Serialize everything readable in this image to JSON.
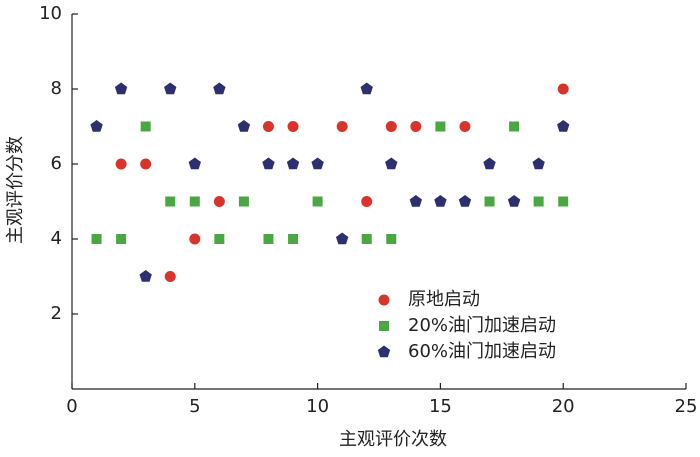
{
  "chart_data": {
    "type": "scatter",
    "xlabel": "主观评价次数",
    "ylabel": "主观评价分数",
    "xlim": [
      0,
      25
    ],
    "xticks": [
      0,
      5,
      10,
      15,
      20,
      25
    ],
    "ylim": [
      0,
      10
    ],
    "yticks": [
      2,
      4,
      6,
      8,
      10
    ],
    "legend": "lower right",
    "series": [
      {
        "name": "原地启动",
        "color": "#d8342c",
        "marker": "circle",
        "x": [
          2,
          3,
          4,
          5,
          6,
          8,
          9,
          11,
          12,
          13,
          14,
          16,
          20
        ],
        "values": [
          6,
          6,
          3,
          4,
          5,
          7,
          7,
          7,
          5,
          7,
          7,
          7,
          8
        ]
      },
      {
        "name": "20%油门加速启动",
        "color": "#4aa842",
        "marker": "square",
        "x": [
          1,
          2,
          3,
          4,
          5,
          6,
          7,
          8,
          9,
          10,
          12,
          13,
          15,
          17,
          18,
          19,
          20
        ],
        "values": [
          4,
          4,
          7,
          5,
          5,
          4,
          5,
          4,
          4,
          5,
          4,
          4,
          7,
          5,
          7,
          5,
          5
        ]
      },
      {
        "name": "60%油门加速启动",
        "color": "#2e2f6e",
        "marker": "pentagon",
        "x": [
          1,
          2,
          3,
          4,
          5,
          6,
          7,
          8,
          9,
          10,
          11,
          12,
          13,
          14,
          15,
          16,
          17,
          18,
          19,
          20
        ],
        "values": [
          7,
          8,
          3,
          8,
          6,
          8,
          7,
          6,
          6,
          6,
          4,
          8,
          6,
          5,
          5,
          5,
          6,
          5,
          6,
          7
        ]
      }
    ]
  }
}
